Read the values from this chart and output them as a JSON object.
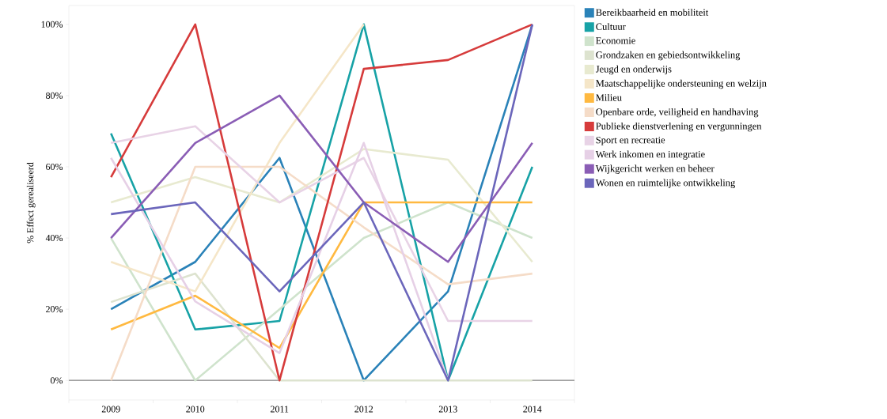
{
  "chart_data": {
    "type": "line",
    "ylabel": "% Effect gerealiseerd",
    "categories": [
      "2009",
      "2010",
      "2011",
      "2012",
      "2013",
      "2014"
    ],
    "series": [
      {
        "name": "Bereikbaarheid en mobiliteit",
        "color": "#2a82b8",
        "values": [
          20,
          33.3,
          62.5,
          0,
          25,
          100
        ]
      },
      {
        "name": "Cultuur",
        "color": "#17a2a6",
        "values": [
          69.4,
          14.3,
          16.7,
          100,
          0,
          60
        ]
      },
      {
        "name": "Economie",
        "color": "#cfe3cc",
        "values": [
          40,
          0,
          20,
          40,
          50,
          40
        ]
      },
      {
        "name": "Grondzaken en gebiedsontwikkeling",
        "color": "#dde3cf",
        "values": [
          22,
          30,
          0,
          0,
          0,
          0
        ]
      },
      {
        "name": "Jeugd en onderwijs",
        "color": "#e8ead0",
        "values": [
          50,
          57.1,
          50,
          65,
          62,
          33.3
        ]
      },
      {
        "name": "Maatschappelijke ondersteuning en welzijn",
        "color": "#f5e6c8",
        "values": [
          33.3,
          25,
          66.7,
          100,
          null,
          null
        ]
      },
      {
        "name": "Milieu",
        "color": "#ffb940",
        "values": [
          14.3,
          23.8,
          9.1,
          50,
          50,
          50
        ]
      },
      {
        "name": "Openbare orde, veiligheid en handhaving",
        "color": "#f5dcc8",
        "values": [
          0,
          60,
          60,
          43,
          27,
          30
        ]
      },
      {
        "name": "Publieke dienstverlening en vergunningen",
        "color": "#d63b3b",
        "values": [
          57.1,
          100,
          0,
          87.5,
          90,
          100
        ]
      },
      {
        "name": "Sport en recreatie",
        "color": "#e8d3e6",
        "values": [
          66.7,
          71.4,
          50,
          62.5,
          16.7,
          16.7
        ]
      },
      {
        "name": "Werk inkomen en integratie",
        "color": "#e6d0e6",
        "values": [
          62.5,
          22.2,
          7.7,
          66.7,
          0,
          null
        ]
      },
      {
        "name": "Wijkgericht werken en beheer",
        "color": "#8a5db5",
        "values": [
          40,
          66.7,
          80,
          50,
          33.3,
          66.7
        ]
      },
      {
        "name": "Wonen en ruimtelijke ontwikkeling",
        "color": "#6b66bb",
        "values": [
          46.7,
          50,
          25,
          50,
          0,
          100
        ]
      }
    ],
    "ylim": [
      -5.5,
      105.3
    ],
    "yticks": [
      {
        "value": 0,
        "label": "0%"
      },
      {
        "value": 20,
        "label": "20%"
      },
      {
        "value": 40,
        "label": "40%"
      },
      {
        "value": 60,
        "label": "60%"
      },
      {
        "value": 80,
        "label": "80%"
      },
      {
        "value": 100,
        "label": "100%"
      }
    ],
    "ref_lines": [
      {
        "axis": "y",
        "value": 0,
        "color": "#808080"
      }
    ],
    "grid": false,
    "legend": "right"
  }
}
